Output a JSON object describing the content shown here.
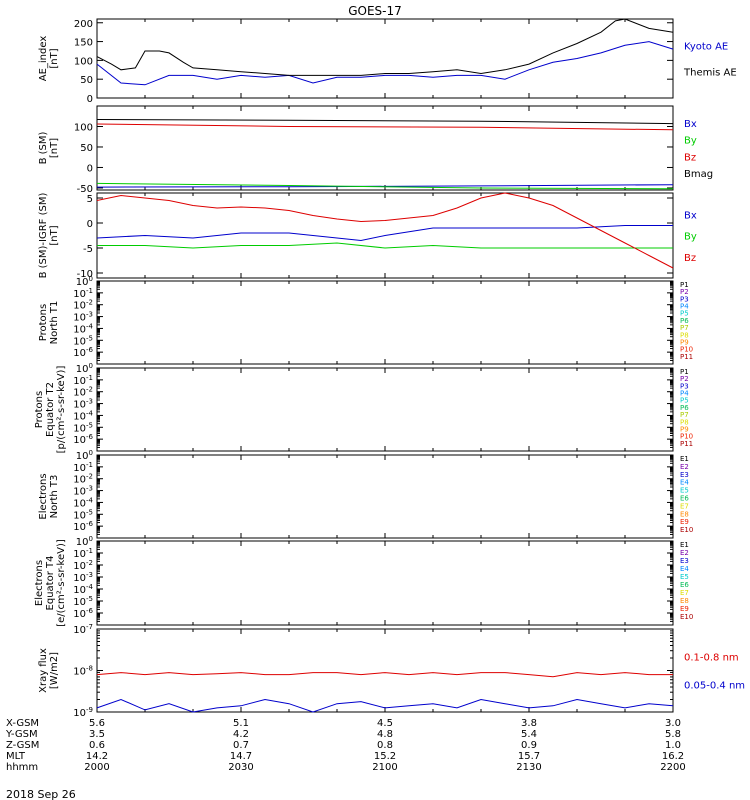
{
  "title": "GOES-17",
  "date_label": "2018 Sep 26",
  "chart_data": [
    {
      "id": "ae",
      "type": "line",
      "ylabel": [
        "AE_index",
        "[nT]"
      ],
      "ylim": [
        0,
        210
      ],
      "yticks": [
        0,
        50,
        100,
        150,
        200
      ],
      "ytick_labels": [
        "0",
        "50",
        "100",
        "150",
        "200"
      ],
      "series": [
        {
          "name": "Kyoto AE",
          "color": "#0000cc",
          "x": [
            0,
            5,
            10,
            15,
            20,
            25,
            30,
            35,
            40,
            45,
            50,
            55,
            60,
            65,
            70,
            75,
            80,
            85,
            90,
            95,
            100,
            105,
            110,
            115,
            120
          ],
          "y": [
            90,
            40,
            35,
            60,
            60,
            50,
            60,
            55,
            60,
            40,
            55,
            55,
            60,
            60,
            55,
            60,
            60,
            50,
            75,
            95,
            105,
            120,
            140,
            150,
            130
          ]
        },
        {
          "name": "Themis AE",
          "color": "#000000",
          "x": [
            0,
            3,
            5,
            8,
            10,
            13,
            15,
            18,
            20,
            25,
            30,
            35,
            40,
            45,
            50,
            55,
            60,
            65,
            70,
            75,
            80,
            85,
            90,
            95,
            100,
            105,
            108,
            110,
            115,
            120
          ],
          "y": [
            110,
            90,
            75,
            80,
            125,
            125,
            120,
            95,
            80,
            75,
            70,
            65,
            60,
            60,
            60,
            60,
            65,
            65,
            70,
            75,
            65,
            75,
            90,
            120,
            145,
            175,
            205,
            210,
            185,
            175
          ]
        }
      ]
    },
    {
      "id": "bsm",
      "type": "line",
      "ylabel": [
        "B (SM)",
        "[nT]"
      ],
      "ylim": [
        -55,
        150
      ],
      "yticks": [
        -50,
        0,
        50,
        100
      ],
      "ytick_labels": [
        "-50",
        "0",
        "50",
        "100"
      ],
      "series": [
        {
          "name": "Bx",
          "color": "#0000cc",
          "x": [
            0,
            40,
            80,
            120
          ],
          "y": [
            -48,
            -47,
            -45,
            -42
          ]
        },
        {
          "name": "By",
          "color": "#00cc00",
          "x": [
            0,
            40,
            80,
            120
          ],
          "y": [
            -39,
            -44,
            -50,
            -52
          ]
        },
        {
          "name": "Bz",
          "color": "#dd0000",
          "x": [
            0,
            40,
            80,
            120
          ],
          "y": [
            106,
            100,
            98,
            92
          ]
        },
        {
          "name": "Bmag",
          "color": "#000000",
          "x": [
            0,
            40,
            80,
            120
          ],
          "y": [
            117,
            115,
            113,
            107
          ]
        }
      ]
    },
    {
      "id": "bigrf",
      "type": "line",
      "ylabel": [
        "B (SM)-IGRF (SM)",
        "[nT]"
      ],
      "ylim": [
        -11,
        6
      ],
      "yticks": [
        -10,
        -5,
        0,
        5
      ],
      "ytick_labels": [
        "-10",
        "-5",
        "0",
        "5"
      ],
      "series": [
        {
          "name": "Bx",
          "color": "#0000cc",
          "x": [
            0,
            10,
            20,
            30,
            40,
            50,
            55,
            60,
            70,
            80,
            90,
            100,
            110,
            120
          ],
          "y": [
            -3,
            -2.5,
            -3,
            -2,
            -2,
            -3,
            -3.5,
            -2.5,
            -1,
            -1,
            -1,
            -1,
            -0.5,
            -0.5
          ]
        },
        {
          "name": "By",
          "color": "#00cc00",
          "x": [
            0,
            10,
            20,
            30,
            40,
            50,
            60,
            70,
            80,
            90,
            100,
            110,
            120
          ],
          "y": [
            -4.5,
            -4.5,
            -5,
            -4.5,
            -4.5,
            -4,
            -5,
            -4.5,
            -5,
            -5,
            -5,
            -5,
            -5
          ]
        },
        {
          "name": "Bz",
          "color": "#dd0000",
          "x": [
            0,
            5,
            10,
            15,
            20,
            25,
            30,
            35,
            40,
            45,
            50,
            55,
            60,
            65,
            70,
            75,
            80,
            85,
            90,
            95,
            100,
            105,
            110,
            115,
            120
          ],
          "y": [
            4.5,
            5.5,
            5,
            4.5,
            3.5,
            3,
            3.2,
            3,
            2.5,
            1.5,
            0.8,
            0.3,
            0.5,
            1,
            1.5,
            3,
            5,
            6,
            5,
            3.5,
            1,
            -1.5,
            -4,
            -6.5,
            -9
          ]
        }
      ]
    },
    {
      "id": "prot_n",
      "type": "line",
      "ylabel": [
        "Protons",
        "North T1"
      ],
      "log": true,
      "ylim_exp": [
        -7,
        0
      ],
      "ytick_exps": [
        0,
        -1,
        -2,
        -3,
        -4,
        -5,
        -6
      ],
      "legend": [
        {
          "name": "P1",
          "color": "#000000"
        },
        {
          "name": "P2",
          "color": "#7700aa"
        },
        {
          "name": "P3",
          "color": "#0000cc"
        },
        {
          "name": "P4",
          "color": "#0088ff"
        },
        {
          "name": "P5",
          "color": "#00cccc"
        },
        {
          "name": "P6",
          "color": "#00bb55"
        },
        {
          "name": "P7",
          "color": "#aacc00"
        },
        {
          "name": "P8",
          "color": "#dddd00"
        },
        {
          "name": "P9",
          "color": "#ff8800"
        },
        {
          "name": "P10",
          "color": "#ee2200"
        },
        {
          "name": "P11",
          "color": "#aa0000"
        }
      ]
    },
    {
      "id": "prot_e",
      "type": "line",
      "ylabel": [
        "Protons",
        "Equator T2",
        "[p/(cm²-s-sr-keV)]"
      ],
      "log": true,
      "ylim_exp": [
        -7,
        0
      ],
      "ytick_exps": [
        0,
        -1,
        -2,
        -3,
        -4,
        -5,
        -6
      ],
      "legend": [
        {
          "name": "P1",
          "color": "#000000"
        },
        {
          "name": "P2",
          "color": "#7700aa"
        },
        {
          "name": "P3",
          "color": "#0000cc"
        },
        {
          "name": "P4",
          "color": "#0088ff"
        },
        {
          "name": "P5",
          "color": "#00cccc"
        },
        {
          "name": "P6",
          "color": "#00bb55"
        },
        {
          "name": "P7",
          "color": "#aacc00"
        },
        {
          "name": "P8",
          "color": "#dddd00"
        },
        {
          "name": "P9",
          "color": "#ff8800"
        },
        {
          "name": "P10",
          "color": "#ee2200"
        },
        {
          "name": "P11",
          "color": "#aa0000"
        }
      ]
    },
    {
      "id": "elec_n",
      "type": "line",
      "ylabel": [
        "Electrons",
        "North T3"
      ],
      "log": true,
      "ylim_exp": [
        -7,
        0
      ],
      "ytick_exps": [
        0,
        -1,
        -2,
        -3,
        -4,
        -5,
        -6
      ],
      "legend": [
        {
          "name": "E1",
          "color": "#000000"
        },
        {
          "name": "E2",
          "color": "#7700aa"
        },
        {
          "name": "E3",
          "color": "#0000cc"
        },
        {
          "name": "E4",
          "color": "#0088ff"
        },
        {
          "name": "E5",
          "color": "#00cccc"
        },
        {
          "name": "E6",
          "color": "#00bb55"
        },
        {
          "name": "E7",
          "color": "#dddd00"
        },
        {
          "name": "E8",
          "color": "#ff8800"
        },
        {
          "name": "E9",
          "color": "#ee2200"
        },
        {
          "name": "E10",
          "color": "#aa0000"
        }
      ]
    },
    {
      "id": "elec_e",
      "type": "line",
      "ylabel": [
        "Electrons",
        "Equator T4",
        "[e/(cm²-s-sr-keV)]"
      ],
      "log": true,
      "ylim_exp": [
        -7,
        0
      ],
      "ytick_exps": [
        0,
        -1,
        -2,
        -3,
        -4,
        -5,
        -6
      ],
      "legend": [
        {
          "name": "E1",
          "color": "#000000"
        },
        {
          "name": "E2",
          "color": "#7700aa"
        },
        {
          "name": "E3",
          "color": "#0000cc"
        },
        {
          "name": "E4",
          "color": "#0088ff"
        },
        {
          "name": "E5",
          "color": "#00cccc"
        },
        {
          "name": "E6",
          "color": "#00bb55"
        },
        {
          "name": "E7",
          "color": "#dddd00"
        },
        {
          "name": "E8",
          "color": "#ff8800"
        },
        {
          "name": "E9",
          "color": "#ee2200"
        },
        {
          "name": "E10",
          "color": "#aa0000"
        }
      ]
    },
    {
      "id": "xray",
      "type": "line",
      "ylabel": [
        "Xray flux",
        "[W/m2]"
      ],
      "log": true,
      "ylim_exp": [
        -9,
        -7
      ],
      "ytick_exps": [
        -7,
        -8,
        -9
      ],
      "series": [
        {
          "name": "0.1-0.8 nm",
          "color": "#dd0000",
          "x": [
            0,
            5,
            10,
            15,
            20,
            25,
            30,
            35,
            40,
            45,
            50,
            55,
            60,
            65,
            70,
            75,
            80,
            85,
            90,
            95,
            100,
            105,
            110,
            115,
            120
          ],
          "y_exp": [
            -8.1,
            -8.05,
            -8.1,
            -8.05,
            -8.1,
            -8.08,
            -8.05,
            -8.1,
            -8.1,
            -8.05,
            -8.05,
            -8.1,
            -8.05,
            -8.1,
            -8.05,
            -8.1,
            -8.05,
            -8.05,
            -8.1,
            -8.15,
            -8.05,
            -8.1,
            -8.05,
            -8.1,
            -8.1
          ]
        },
        {
          "name": "0.05-0.4 nm",
          "color": "#0000cc",
          "x": [
            0,
            5,
            10,
            15,
            20,
            25,
            30,
            35,
            40,
            45,
            50,
            55,
            60,
            65,
            70,
            75,
            80,
            85,
            90,
            95,
            100,
            105,
            110,
            115,
            120
          ],
          "y_exp": [
            -8.9,
            -8.7,
            -8.95,
            -8.8,
            -9,
            -8.9,
            -8.85,
            -8.7,
            -8.8,
            -9,
            -8.8,
            -8.75,
            -8.9,
            -8.85,
            -8.8,
            -8.9,
            -8.7,
            -8.8,
            -8.9,
            -8.85,
            -8.7,
            -8.8,
            -8.9,
            -8.8,
            -8.85
          ]
        }
      ]
    }
  ],
  "x_axis": {
    "range_min": [
      0,
      120
    ],
    "ticks_min": [
      0,
      30,
      60,
      90,
      120
    ],
    "rows": [
      {
        "label": "X-GSM",
        "values": [
          "5.6",
          "5.1",
          "4.5",
          "3.8",
          "3.0"
        ]
      },
      {
        "label": "Y-GSM",
        "values": [
          "3.5",
          "4.2",
          "4.8",
          "5.4",
          "5.8"
        ]
      },
      {
        "label": "Z-GSM",
        "values": [
          "0.6",
          "0.7",
          "0.8",
          "0.9",
          "1.0"
        ]
      },
      {
        "label": "MLT",
        "values": [
          "14.2",
          "14.7",
          "15.2",
          "15.7",
          "16.2"
        ]
      },
      {
        "label": "hhmm",
        "values": [
          "2000",
          "2030",
          "2100",
          "2130",
          "2200"
        ]
      }
    ]
  }
}
